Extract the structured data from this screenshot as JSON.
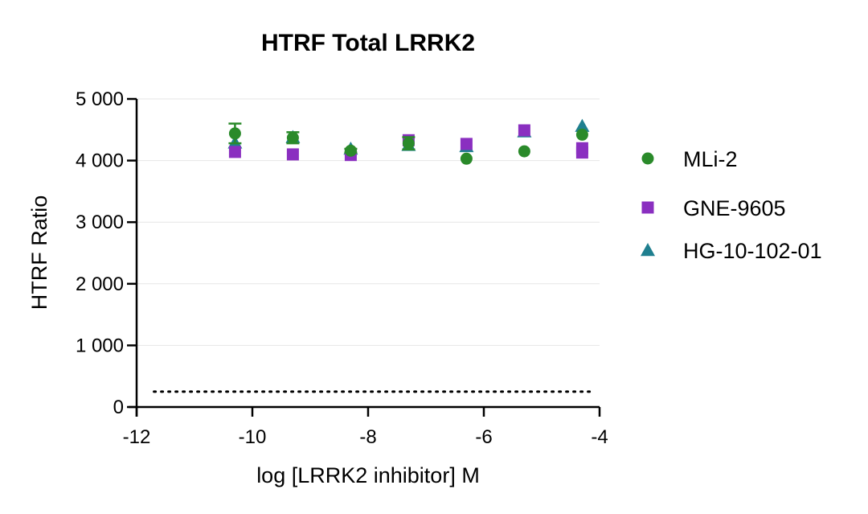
{
  "chart_data": {
    "type": "scatter",
    "title": "HTRF Total LRRK2",
    "xlabel": "log [LRRK2 inhibitor] M",
    "ylabel": "HTRF Ratio",
    "xlim": [
      -12,
      -4
    ],
    "ylim": [
      0,
      5000
    ],
    "x_ticks": [
      -12,
      -10,
      -8,
      -6,
      -4
    ],
    "x_tick_labels": [
      "-12",
      "-10",
      "-8",
      "-6",
      "-4"
    ],
    "y_ticks": [
      0,
      1000,
      2000,
      3000,
      4000,
      5000
    ],
    "y_tick_labels": [
      "0",
      "1 000",
      "2 000",
      "3 000",
      "4 000",
      "5 000"
    ],
    "grid": "horizontal",
    "legend_position": "right",
    "baseline": 250,
    "series": [
      {
        "name": "MLi-2",
        "marker": "circle",
        "color": "#2a8a2a",
        "x": [
          -10.3,
          -9.3,
          -8.3,
          -7.3,
          -6.3,
          -5.3,
          -4.3
        ],
        "y": [
          4440,
          4370,
          4160,
          4280,
          4030,
          4150,
          4420
        ],
        "err": [
          160,
          90,
          30,
          100,
          0,
          0,
          0
        ]
      },
      {
        "name": "GNE-9605",
        "marker": "square",
        "color": "#8a2fc0",
        "x": [
          -10.3,
          -9.3,
          -8.3,
          -7.3,
          -6.3,
          -5.3,
          -4.3,
          -4.3
        ],
        "y": [
          4140,
          4100,
          4090,
          4330,
          4270,
          4490,
          4200,
          4130
        ],
        "err": [
          0,
          0,
          0,
          0,
          0,
          0,
          0,
          0
        ]
      },
      {
        "name": "HG-10-102-01",
        "marker": "triangle",
        "color": "#1f7f8f",
        "x": [
          -10.3,
          -9.3,
          -8.3,
          -7.3,
          -6.3,
          -5.3,
          -4.3
        ],
        "y": [
          4290,
          4380,
          4190,
          4250,
          4230,
          4470,
          4560
        ],
        "err": [
          0,
          0,
          0,
          0,
          0,
          0,
          0
        ]
      }
    ]
  }
}
